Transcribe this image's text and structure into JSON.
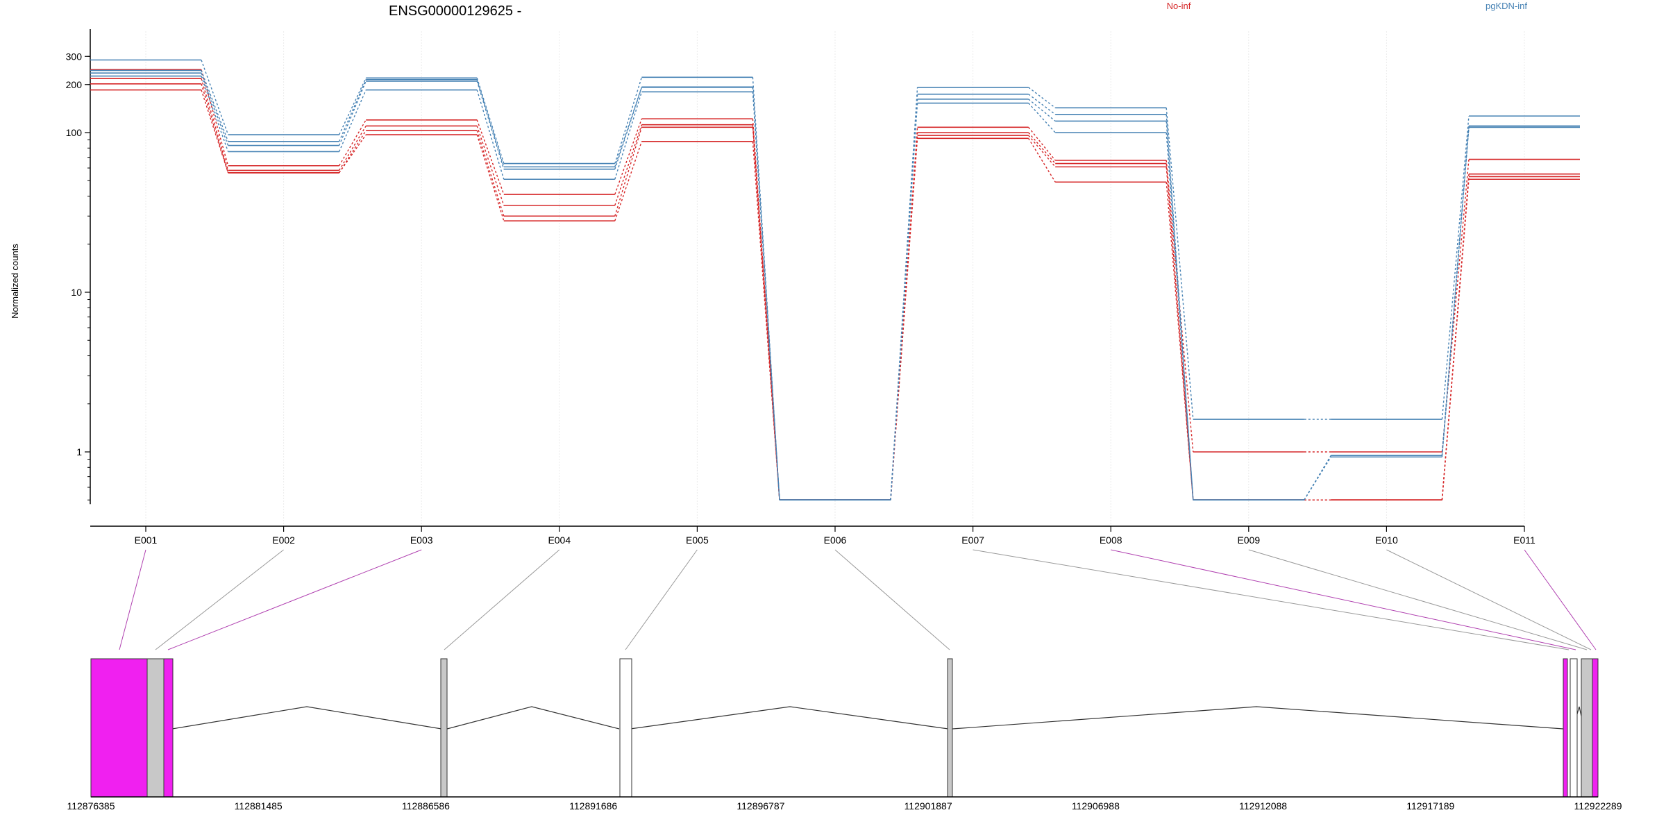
{
  "chart_data": {
    "type": "line",
    "title": "ENSG00000129625 -",
    "ylabel": "Normalized counts",
    "xlabel": "",
    "y_scale": "log",
    "ylim": [
      0.5,
      320
    ],
    "y_ticks": [
      "1",
      "10",
      "100",
      "200",
      "300"
    ],
    "categories": [
      "E001",
      "E002",
      "E003",
      "E004",
      "E005",
      "E006",
      "E007",
      "E008",
      "E009",
      "E010",
      "E011"
    ],
    "grid": true,
    "legend": [
      {
        "name": "No-inf",
        "color": "#d62728"
      },
      {
        "name": "pgKDN-inf",
        "color": "#4682b4"
      }
    ],
    "series": [
      {
        "group": "No-inf",
        "values": [
          248,
          62,
          120,
          41,
          122,
          0.5,
          108,
          67,
          1.0,
          1.0,
          68
        ]
      },
      {
        "group": "No-inf",
        "values": [
          218,
          58,
          110,
          35,
          112,
          0.5,
          100,
          64,
          0.5,
          0.5,
          55
        ]
      },
      {
        "group": "No-inf",
        "values": [
          202,
          56,
          103,
          30,
          108,
          0.5,
          96,
          61,
          0.5,
          0.5,
          53
        ]
      },
      {
        "group": "No-inf",
        "values": [
          185,
          56,
          97,
          28,
          88,
          0.5,
          92,
          49,
          0.5,
          0.5,
          51
        ]
      },
      {
        "group": "pgKDN-inf",
        "values": [
          285,
          97,
          220,
          64,
          222,
          0.5,
          192,
          143,
          1.6,
          1.6,
          127
        ]
      },
      {
        "group": "pgKDN-inf",
        "values": [
          245,
          88,
          215,
          61,
          193,
          0.5,
          174,
          130,
          0.5,
          0.95,
          110
        ]
      },
      {
        "group": "pgKDN-inf",
        "values": [
          236,
          83,
          210,
          59,
          192,
          0.5,
          162,
          118,
          0.5,
          0.95,
          108
        ]
      },
      {
        "group": "pgKDN-inf",
        "values": [
          226,
          76,
          185,
          51,
          180,
          0.5,
          153,
          100,
          0.5,
          0.93,
          108
        ]
      }
    ]
  },
  "gene_model": {
    "axis_labels": [
      "112876385",
      "112881485",
      "112886586",
      "112891686",
      "112896787",
      "112901887",
      "112906988",
      "112912088",
      "112917189",
      "112922289"
    ],
    "colors": {
      "magenta": "#f020f0",
      "gray": "#c8c8c8",
      "white": "#ffffff"
    }
  }
}
